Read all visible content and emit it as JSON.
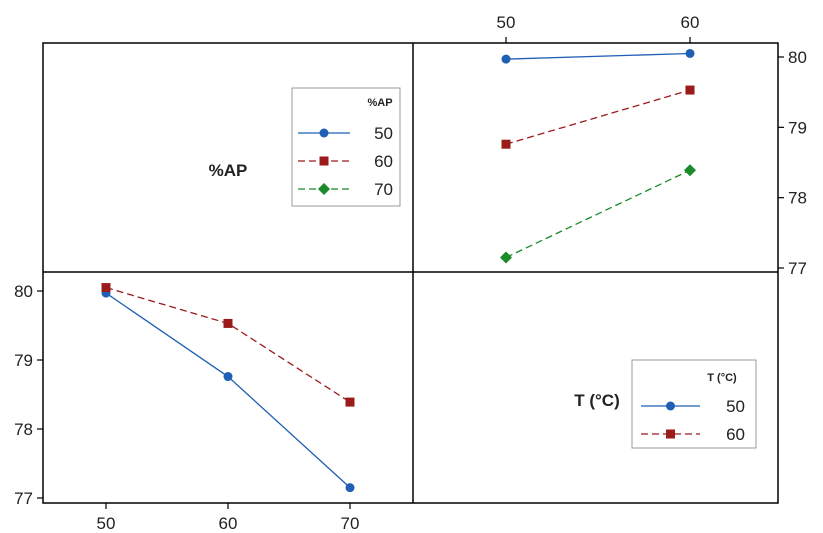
{
  "chart_data": {
    "type": "line",
    "variables": [
      {
        "name": "%AP",
        "levels": [
          "50",
          "60",
          "70"
        ]
      },
      {
        "name": "T (°C)",
        "levels": [
          "50",
          "60"
        ]
      }
    ],
    "yticks": [
      "77",
      "78",
      "79",
      "80"
    ],
    "ylim": [
      77,
      80.2
    ],
    "colors": {
      "50": "#1f5fb4",
      "60": "#9b1b1b",
      "70": "#1a8a2a"
    },
    "markers": {
      "50": "circle",
      "60": "square",
      "70": "diamond"
    },
    "dashed": {
      "50": false,
      "60": true,
      "70": true
    },
    "panels": {
      "top_right": {
        "description": "x = T (°C), traces = %AP",
        "x": [
          "50",
          "60"
        ],
        "series": [
          {
            "name": "50",
            "values": [
              79.97,
              80.05
            ]
          },
          {
            "name": "60",
            "values": [
              78.76,
              79.53
            ]
          },
          {
            "name": "70",
            "values": [
              77.15,
              78.39
            ]
          }
        ]
      },
      "bottom_left": {
        "description": "x = %AP, traces = T (°C)",
        "x": [
          "50",
          "60",
          "70"
        ],
        "series": [
          {
            "name": "50",
            "values": [
              79.97,
              78.76,
              77.15
            ]
          },
          {
            "name": "60",
            "values": [
              80.05,
              79.53,
              78.39
            ]
          }
        ]
      }
    },
    "legends": {
      "ap": {
        "title": "%AP",
        "entries": [
          "50",
          "60",
          "70"
        ]
      },
      "t": {
        "title": "T (°C)",
        "entries": [
          "50",
          "60"
        ]
      }
    }
  }
}
